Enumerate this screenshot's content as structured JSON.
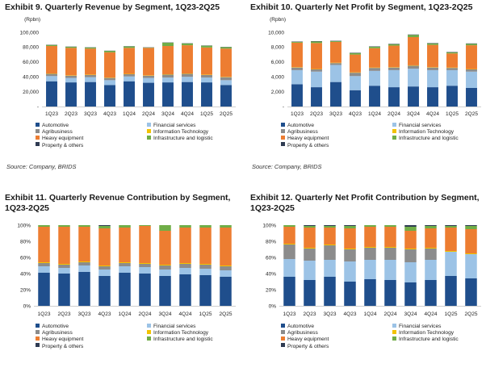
{
  "colors": {
    "Automotive": "#1f4e8c",
    "Financial services": "#9cc3e6",
    "Agribusiness": "#8c8c8c",
    "Information Technology": "#f2c200",
    "Heavy equipment": "#ed7d31",
    "Infrastructure and logistic": "#70ad47",
    "Property & others": "#2f3b52"
  },
  "legend_entries": [
    "Automotive",
    "Financial services",
    "Agribusiness",
    "Information Technology",
    "Heavy equipment",
    "Infrastructure and logistic",
    "Property & others"
  ],
  "chart_data": [
    {
      "type": "bar",
      "stacked": true,
      "title": "Exhibit 9. Quarterly Revenue by Segment, 1Q23-2Q25",
      "unit_label": "(Rpbn)",
      "source": "Source: Company, BRIDS",
      "categories": [
        "1Q23",
        "2Q23",
        "3Q23",
        "4Q23",
        "1Q24",
        "2Q24",
        "3Q24",
        "4Q24",
        "1Q25",
        "2Q25"
      ],
      "ylim": [
        0,
        100000
      ],
      "yticks": [
        0,
        20000,
        40000,
        60000,
        80000,
        100000
      ],
      "ytick_labels": [
        "-",
        "20,000",
        "40,000",
        "60,000",
        "80,000",
        "100,000"
      ],
      "series": [
        {
          "name": "Automotive",
          "values": [
            34000,
            32500,
            33000,
            29000,
            34000,
            32000,
            32500,
            33000,
            32500,
            29000
          ]
        },
        {
          "name": "Financial services",
          "values": [
            7000,
            6000,
            6500,
            6500,
            6500,
            6500,
            6500,
            7000,
            6500,
            6500
          ]
        },
        {
          "name": "Agribusiness",
          "values": [
            3000,
            3000,
            3000,
            3000,
            3000,
            3000,
            4000,
            4000,
            3500,
            4000
          ]
        },
        {
          "name": "Information Technology",
          "values": [
            500,
            500,
            500,
            500,
            500,
            500,
            500,
            500,
            500,
            500
          ]
        },
        {
          "name": "Heavy equipment",
          "values": [
            37000,
            37000,
            35000,
            34000,
            35000,
            37000,
            38000,
            38000,
            36500,
            38000
          ]
        },
        {
          "name": "Infrastructure and logistic",
          "values": [
            1500,
            1500,
            1500,
            2000,
            2000,
            500,
            4500,
            2500,
            2500,
            2000
          ]
        },
        {
          "name": "Property & others",
          "values": [
            200,
            200,
            200,
            200,
            200,
            200,
            200,
            200,
            200,
            200
          ]
        }
      ]
    },
    {
      "type": "bar",
      "stacked": true,
      "title": "Exhibit 10. Quarterly Net Profit by Segment, 1Q23-2Q25",
      "unit_label": "(Rpbn)",
      "source": "Source: Company, BRIDS",
      "categories": [
        "1Q23",
        "2Q23",
        "3Q23",
        "4Q23",
        "1Q24",
        "2Q24",
        "3Q24",
        "4Q24",
        "1Q25",
        "2Q25"
      ],
      "ylim": [
        0,
        10000
      ],
      "yticks": [
        0,
        2000,
        4000,
        6000,
        8000,
        10000
      ],
      "ytick_labels": [
        "-",
        "2,000",
        "4,000",
        "6,000",
        "8,000",
        "10,000"
      ],
      "series": [
        {
          "name": "Automotive",
          "values": [
            3000,
            2600,
            3300,
            2200,
            2800,
            2600,
            2700,
            2600,
            2800,
            2500
          ]
        },
        {
          "name": "Financial services",
          "values": [
            1900,
            2100,
            2300,
            1900,
            2000,
            2300,
            2400,
            2300,
            2100,
            2200
          ]
        },
        {
          "name": "Agribusiness",
          "values": [
            350,
            300,
            250,
            450,
            400,
            350,
            400,
            350,
            300,
            300
          ]
        },
        {
          "name": "Information Technology",
          "values": [
            50,
            50,
            50,
            50,
            50,
            50,
            50,
            50,
            50,
            50
          ]
        },
        {
          "name": "Heavy equipment",
          "values": [
            3300,
            3500,
            2800,
            2400,
            2600,
            2900,
            3800,
            3000,
            1900,
            3200
          ]
        },
        {
          "name": "Infrastructure and logistic",
          "values": [
            100,
            200,
            100,
            200,
            200,
            200,
            300,
            200,
            150,
            200
          ]
        },
        {
          "name": "Property & others",
          "values": [
            50,
            50,
            50,
            50,
            50,
            50,
            50,
            50,
            50,
            50
          ]
        }
      ]
    },
    {
      "type": "bar",
      "stacked": true,
      "title": "Exhibit 11. Quarterly Revenue Contribution by Segment, 1Q23-2Q25",
      "source": "",
      "categories": [
        "1Q23",
        "2Q23",
        "3Q23",
        "4Q23",
        "1Q24",
        "2Q24",
        "3Q24",
        "4Q24",
        "1Q25",
        "2Q25"
      ],
      "ylim": [
        0,
        100
      ],
      "yticks": [
        0,
        20,
        40,
        60,
        80,
        100
      ],
      "ytick_labels": [
        "0%",
        "20%",
        "40%",
        "60%",
        "80%",
        "100%"
      ],
      "series": [
        {
          "name": "Automotive",
          "values": [
            41,
            40,
            42,
            37,
            41,
            40,
            37,
            39,
            38,
            36
          ]
        },
        {
          "name": "Financial services",
          "values": [
            8,
            7,
            8,
            8,
            8,
            8,
            8,
            8,
            8,
            8
          ]
        },
        {
          "name": "Agribusiness",
          "values": [
            4,
            4,
            4,
            4,
            4,
            4,
            5,
            5,
            5,
            5
          ]
        },
        {
          "name": "Information Technology",
          "values": [
            1,
            1,
            1,
            1,
            1,
            1,
            1,
            1,
            1,
            1
          ]
        },
        {
          "name": "Heavy equipment",
          "values": [
            44,
            46,
            43,
            46,
            43,
            46,
            42,
            44,
            45,
            47
          ]
        },
        {
          "name": "Infrastructure and logistic",
          "values": [
            2,
            2,
            2,
            3,
            3,
            1,
            7,
            3,
            3,
            3
          ]
        },
        {
          "name": "Property & others",
          "values": [
            0,
            0,
            0,
            1,
            0,
            0,
            0,
            0,
            0,
            0
          ]
        }
      ]
    },
    {
      "type": "bar",
      "stacked": true,
      "title": "Exhibit 12. Quarterly Net Profit Contribution by Segment, 1Q23-2Q25",
      "source": "",
      "categories": [
        "1Q23",
        "2Q23",
        "3Q23",
        "4Q23",
        "1Q24",
        "2Q24",
        "3Q24",
        "4Q24",
        "1Q25",
        "2Q25"
      ],
      "ylim": [
        0,
        100
      ],
      "yticks": [
        0,
        20,
        40,
        60,
        80,
        100
      ],
      "ytick_labels": [
        "0%",
        "20%",
        "40%",
        "60%",
        "80%",
        "100%"
      ],
      "series": [
        {
          "name": "Automotive",
          "values": [
            36,
            32,
            36,
            30,
            33,
            32,
            29,
            32,
            37,
            34
          ]
        },
        {
          "name": "Financial services",
          "values": [
            22,
            24,
            21,
            25,
            24,
            25,
            25,
            25,
            30,
            30
          ]
        },
        {
          "name": "Agribusiness",
          "values": [
            18,
            15,
            18,
            15,
            15,
            15,
            16,
            14,
            0,
            0
          ]
        },
        {
          "name": "Information Technology",
          "values": [
            1,
            1,
            1,
            1,
            1,
            1,
            1,
            1,
            1,
            1
          ]
        },
        {
          "name": "Heavy equipment",
          "values": [
            21,
            25,
            21,
            25,
            25,
            25,
            22,
            24,
            29,
            30
          ]
        },
        {
          "name": "Infrastructure and logistic",
          "values": [
            2,
            2,
            2,
            3,
            2,
            2,
            5,
            3,
            2,
            4
          ]
        },
        {
          "name": "Property & others",
          "values": [
            0,
            1,
            1,
            1,
            0,
            0,
            2,
            1,
            1,
            1
          ]
        }
      ]
    }
  ]
}
